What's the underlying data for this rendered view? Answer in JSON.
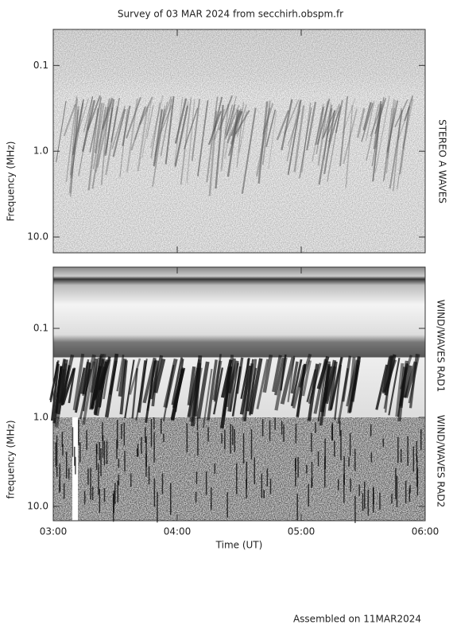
{
  "chart_data": [
    {
      "type": "spectrogram",
      "title": "Survey of 03 MAR 2024 from secchirh.obspm.fr",
      "ylabel": "Frequency (MHz)",
      "side_label": "STEREO A WAVES",
      "log_y": true,
      "ylim": [
        15.3,
        0.038
      ],
      "yticks": [
        {
          "value": 0.1,
          "label": "0.1"
        },
        {
          "value": 1,
          "label": "1.0"
        },
        {
          "value": 10,
          "label": "10.0"
        }
      ],
      "xlim": [
        3,
        6
      ]
    },
    {
      "type": "spectrogram",
      "ylabel": "frequency (MHz)",
      "xlabel": "Time (UT)",
      "side_labels": [
        "WIND/WAVES RAD1",
        "WIND/WAVES RAD2"
      ],
      "log_y": true,
      "ylim": [
        14.5,
        0.0205
      ],
      "yticks": [
        {
          "value": 0.1,
          "label": "0.1"
        },
        {
          "value": 1,
          "label": "1.0"
        },
        {
          "value": 10,
          "label": "10.0"
        }
      ],
      "xlim": [
        3,
        6
      ],
      "xticks": [
        {
          "value": 3,
          "label": "03:00"
        },
        {
          "value": 4,
          "label": "04:00"
        },
        {
          "value": 5,
          "label": "05:00"
        },
        {
          "value": 6,
          "label": "06:00"
        }
      ]
    }
  ],
  "footer": "Assembled on 11MAR2024"
}
